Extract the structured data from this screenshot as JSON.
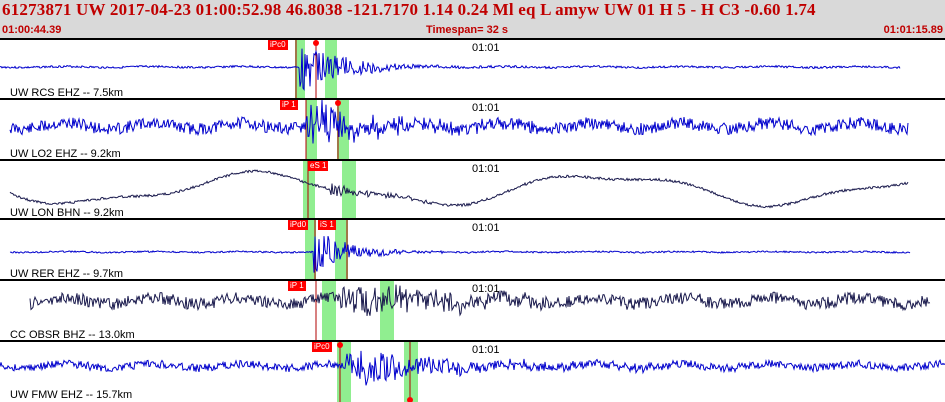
{
  "header": {
    "summary": "61273871 UW 2017-04-23 01:00:52.98   46.8038 -121.7170   1.14  0.24 Ml  eq  L amyw     UW 01  H   5  -  H C3   -0.60  1.74",
    "time_start": "01:00:44.39",
    "timespan": "Timespan=  32 s",
    "time_end": "01:01:15.89"
  },
  "colors": {
    "header_bg": "#d9d9d9",
    "header_text": "#c00000",
    "trace_blue": "#0000cc",
    "trace_dark": "#1a1a4d",
    "pick": "#ff0000",
    "window": "#90ee90"
  },
  "panels": [
    {
      "label": "UW RCS EHZ -- 7.5km",
      "tick": "01:01",
      "picks": [
        "iPc0"
      ]
    },
    {
      "label": "UW LO2 EHZ -- 9.2km",
      "tick": "01:01",
      "picks": [
        "iP 1"
      ]
    },
    {
      "label": "UW LON BHN -- 9.2km",
      "tick": "01:01",
      "picks": [
        "eS 1"
      ]
    },
    {
      "label": "UW RER EHZ -- 9.7km",
      "tick": "01:01",
      "picks": [
        "iPd0",
        "iS 1"
      ]
    },
    {
      "label": "CC OBSR BHZ -- 13.0km",
      "tick": "01:01",
      "picks": [
        "iP 1"
      ]
    },
    {
      "label": "UW FMW EHZ -- 15.7km",
      "tick": "01:01",
      "picks": [
        "iPc0"
      ]
    }
  ]
}
